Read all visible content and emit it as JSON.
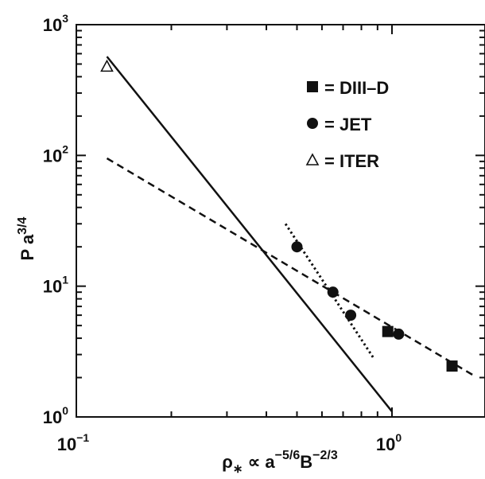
{
  "chart_data": {
    "type": "scatter",
    "scale": {
      "x": "log",
      "y": "log"
    },
    "xlim": [
      0.1,
      2.0
    ],
    "ylim": [
      1,
      1000
    ],
    "x_ticks": [
      {
        "value": 0.1,
        "base": "10",
        "exp": "−1"
      },
      {
        "value": 1.0,
        "base": "10",
        "exp": "0"
      }
    ],
    "y_ticks": [
      {
        "value": 1,
        "base": "10",
        "exp": "0"
      },
      {
        "value": 10,
        "base": "10",
        "exp": "1"
      },
      {
        "value": 100,
        "base": "10",
        "exp": "2"
      },
      {
        "value": 1000,
        "base": "10",
        "exp": "3"
      }
    ],
    "xlabel": {
      "main": "ρ",
      "sub": "∗",
      "middle": " ∝ a",
      "sup1": "−5/6",
      "b": "B",
      "sup2": "−2/3"
    },
    "ylabel": {
      "main": "P a",
      "sup": "3/4"
    },
    "grid": false,
    "legend_position": "top-right",
    "series": [
      {
        "name": "DIII–D",
        "marker": "square",
        "points": [
          [
            0.97,
            4.5
          ],
          [
            1.55,
            2.45
          ]
        ]
      },
      {
        "name": "JET",
        "marker": "circle",
        "points": [
          [
            0.5,
            20
          ],
          [
            0.65,
            9
          ],
          [
            0.74,
            6
          ],
          [
            1.05,
            4.3
          ]
        ]
      },
      {
        "name": "ITER",
        "marker": "triangle-open",
        "points": [
          [
            0.125,
            480
          ]
        ]
      }
    ],
    "lines": [
      {
        "style": "solid",
        "points": [
          [
            0.125,
            570
          ],
          [
            1.0,
            1.1
          ]
        ]
      },
      {
        "style": "dashed",
        "points": [
          [
            0.125,
            95
          ],
          [
            1.8,
            2.1
          ]
        ]
      },
      {
        "style": "dotted",
        "points": [
          [
            0.46,
            30
          ],
          [
            0.88,
            2.75
          ]
        ]
      }
    ],
    "legend": [
      {
        "marker": "square",
        "label": "= DIII–D"
      },
      {
        "marker": "circle",
        "label": "= JET"
      },
      {
        "marker": "triangle-open",
        "label": "= ITER"
      }
    ]
  }
}
